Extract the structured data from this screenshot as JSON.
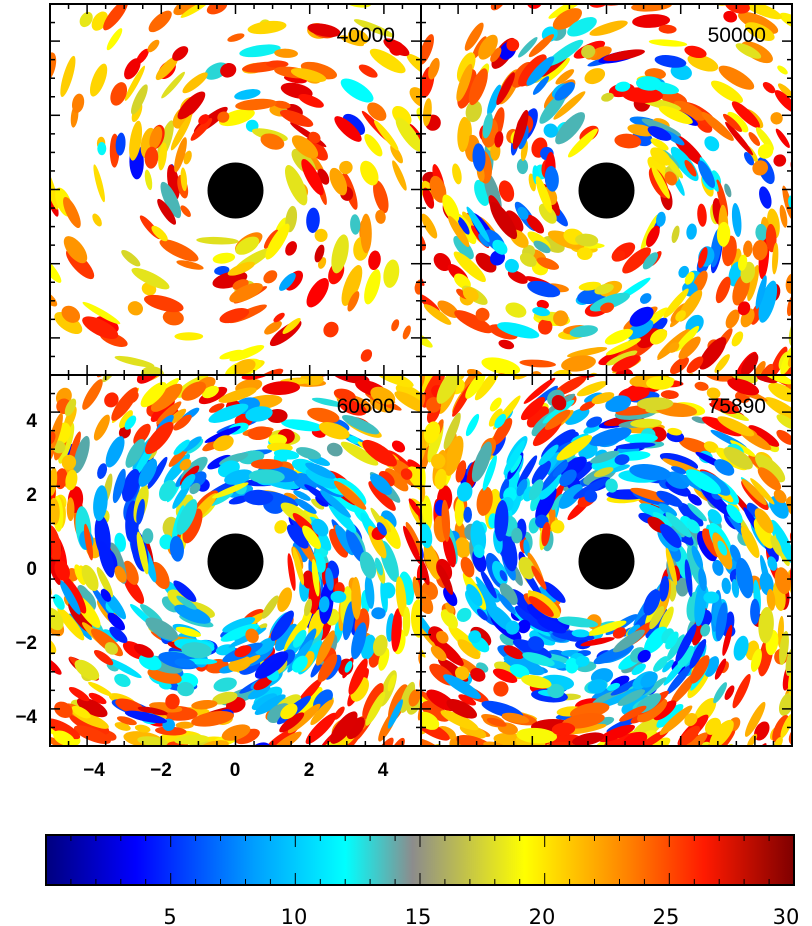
{
  "chart_data": {
    "type": "heatmap",
    "panels": [
      {
        "label": "40000"
      },
      {
        "label": "50000"
      },
      {
        "label": "60600"
      },
      {
        "label": "75890"
      }
    ],
    "xlim": [
      -5,
      5
    ],
    "ylim": [
      -5,
      5
    ],
    "x_ticks": [
      "−4",
      "−2",
      "0",
      "2",
      "4"
    ],
    "y_ticks": [
      "4",
      "2",
      "0",
      "−2",
      "−4"
    ],
    "colorbar": {
      "range": [
        0,
        30
      ],
      "ticks": [
        "5",
        "10",
        "15",
        "20",
        "25",
        "30"
      ],
      "colormap": [
        "#00007f",
        "#0000ff",
        "#00a0ff",
        "#00ffff",
        "#808080",
        "#ffff00",
        "#ff8000",
        "#ff0000",
        "#7f0000"
      ]
    },
    "central_disk_color": "#000000",
    "background_color": "#ffffff"
  }
}
